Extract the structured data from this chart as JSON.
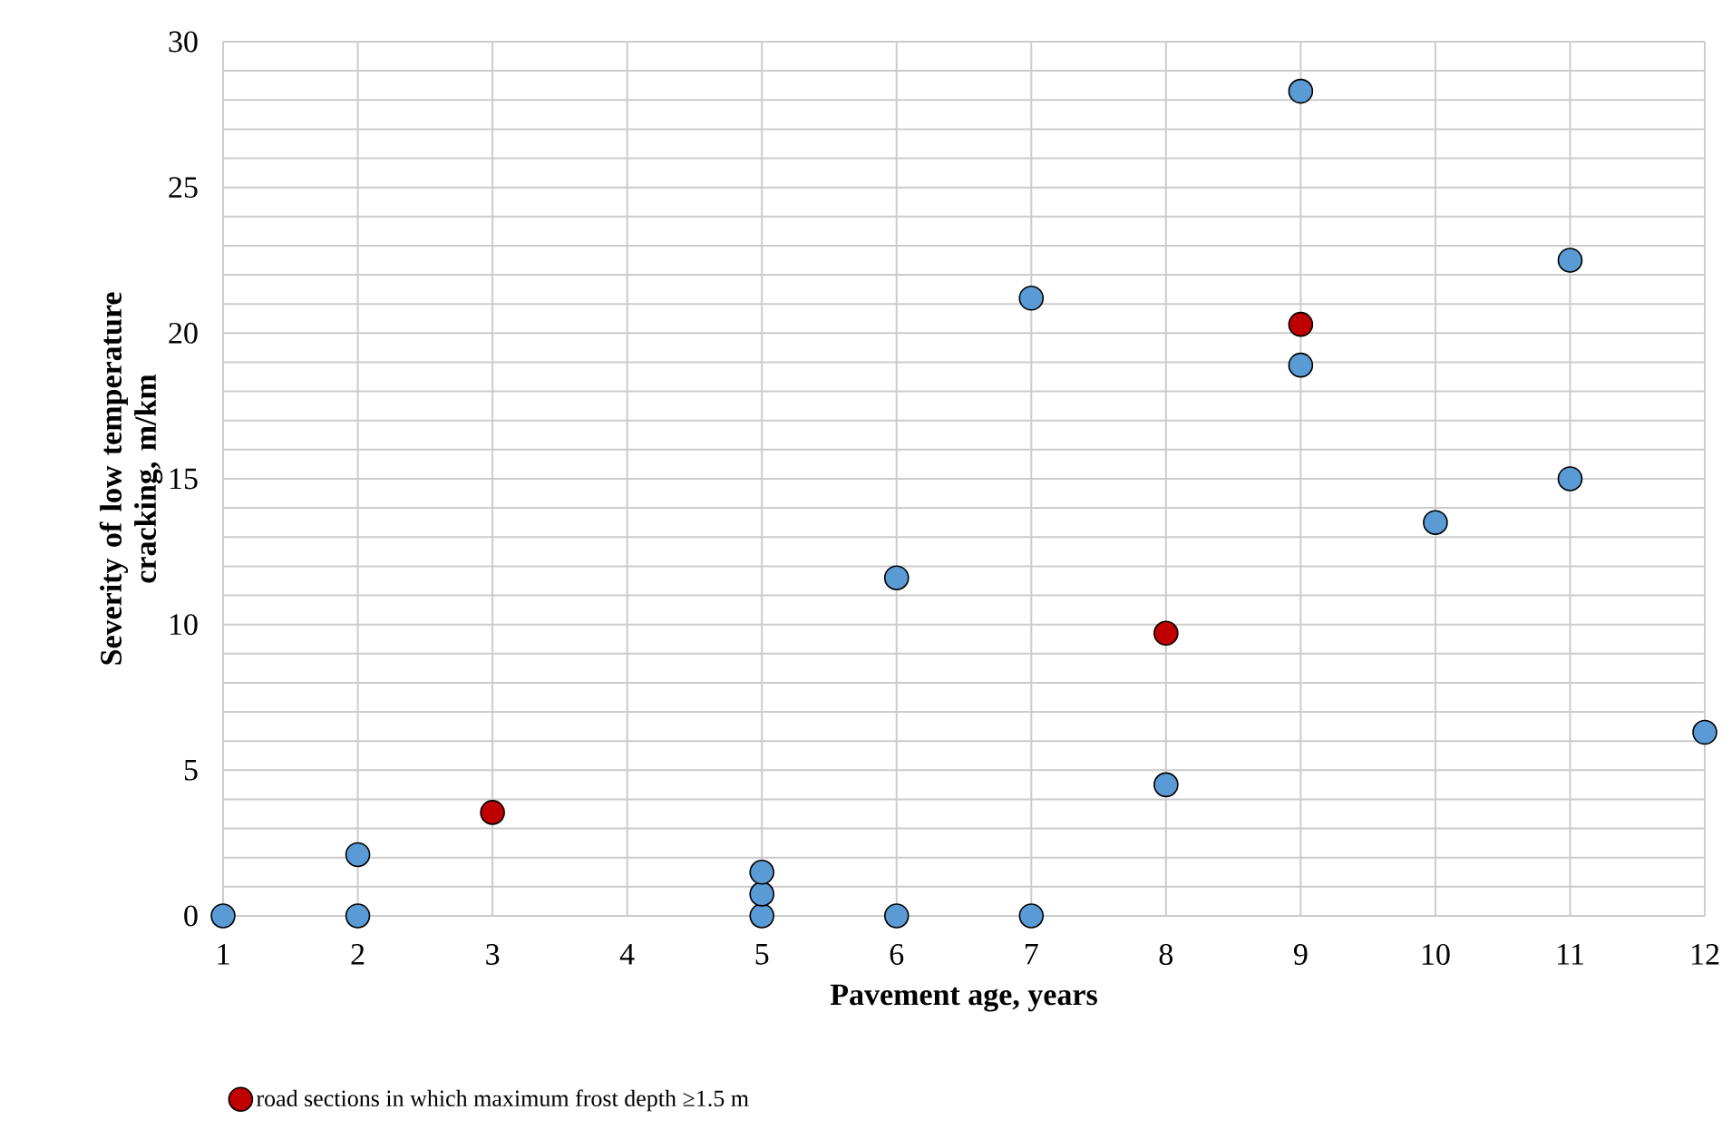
{
  "chart_data": {
    "type": "scatter",
    "xlabel": "Pavement age, years",
    "ylabel": "Severity of low temperature cracking, m/km",
    "xlim": [
      1,
      12
    ],
    "xticks": [
      1,
      2,
      3,
      4,
      5,
      6,
      7,
      8,
      9,
      10,
      11,
      12
    ],
    "ylim": [
      0,
      30
    ],
    "yticks": [
      0,
      5,
      10,
      15,
      20,
      25,
      30
    ],
    "grid": true,
    "legend": "bottom",
    "series": [
      {
        "color": "#5b9bd5",
        "x": [
          1,
          2,
          2,
          5,
          5,
          5,
          6,
          6,
          7,
          7,
          8,
          9,
          9,
          10,
          11,
          11,
          12
        ],
        "values": [
          0,
          0,
          2.1,
          0,
          0.75,
          1.5,
          0,
          11.6,
          0,
          21.2,
          4.5,
          28.3,
          18.9,
          13.5,
          22.5,
          15.0,
          6.3
        ]
      },
      {
        "name": "road sections in which maximum frost depth ≥1.5 m",
        "color": "#c00000",
        "x": [
          3,
          8,
          9
        ],
        "values": [
          3.55,
          9.7,
          20.3
        ]
      }
    ]
  }
}
